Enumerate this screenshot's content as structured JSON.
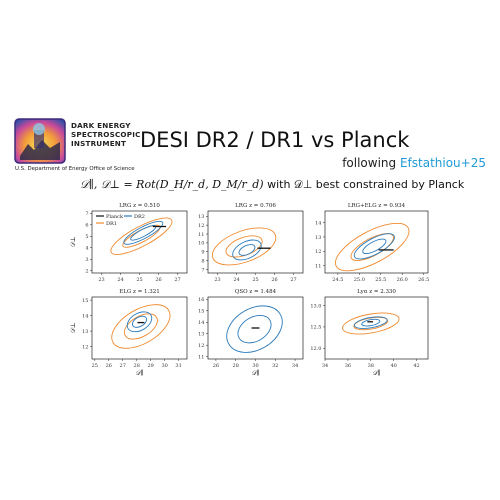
{
  "header": {
    "org_lines": [
      "DARK ENERGY",
      "SPECTROSCOPIC",
      "INSTRUMENT"
    ],
    "org_sub": "U.S. Department of Energy Office of Science",
    "title": "DESI DR2 / DR1 vs Planck",
    "following_prefix": "following ",
    "following_cite": "Efstathiou+25",
    "subtitle_math": "𝒟∥, 𝒟⊥ = Rot(D_H/r_d, D_M/r_d)",
    "subtitle_text": " with 𝒟⊥ best constrained by Planck"
  },
  "colors": {
    "planck": "#111111",
    "dr2": "#2b7bbb",
    "dr1": "#f08a2e"
  },
  "legend": {
    "entries": [
      "Planck",
      "DR2",
      "DR1"
    ],
    "placement": "upper-left (first panel)"
  },
  "chart_data": [
    {
      "type": "scatter",
      "title": "LRG z = 0.510",
      "xlabel": "",
      "ylabel": "𝒟⊥",
      "xlim": [
        22.5,
        27.5
      ],
      "ylim": [
        1.8,
        7.2
      ],
      "xticks": [
        "23",
        "24",
        "25",
        "26",
        "27"
      ],
      "yticks": [
        "2",
        "3",
        "4",
        "5",
        "6",
        "7"
      ],
      "planck": {
        "x": [
          25.7,
          26.4
        ],
        "y": [
          5.85,
          5.85
        ]
      },
      "dr2": [
        {
          "cx": 25.2,
          "cy": 5.3,
          "rx": 0.75,
          "ry": 0.3,
          "rot": -28
        },
        {
          "cx": 25.2,
          "cy": 5.3,
          "rx": 1.15,
          "ry": 0.5,
          "rot": -28
        }
      ],
      "dr1": [
        {
          "cx": 25.1,
          "cy": 5.0,
          "rx": 1.1,
          "ry": 0.5,
          "rot": -28
        },
        {
          "cx": 25.1,
          "cy": 5.0,
          "rx": 1.8,
          "ry": 0.85,
          "rot": -28
        }
      ],
      "legend": true
    },
    {
      "type": "scatter",
      "title": "LRG z = 0.706",
      "xlabel": "",
      "ylabel": "",
      "xlim": [
        22.5,
        27.5
      ],
      "ylim": [
        6.6,
        13.6
      ],
      "xticks": [
        "23",
        "24",
        "25",
        "26",
        "27"
      ],
      "yticks": [
        "7",
        "8",
        "9",
        "10",
        "11",
        "12",
        "13"
      ],
      "planck": {
        "x": [
          25.1,
          25.8
        ],
        "y": [
          9.4,
          9.4
        ]
      },
      "dr2": [
        {
          "cx": 24.55,
          "cy": 9.2,
          "rx": 0.45,
          "ry": 0.5,
          "rot": -25
        },
        {
          "cx": 24.55,
          "cy": 9.2,
          "rx": 0.8,
          "ry": 0.95,
          "rot": -25
        }
      ],
      "dr1": [
        {
          "cx": 24.4,
          "cy": 9.6,
          "rx": 1.0,
          "ry": 1.0,
          "rot": -20
        },
        {
          "cx": 24.4,
          "cy": 9.6,
          "rx": 1.75,
          "ry": 1.75,
          "rot": -20
        }
      ],
      "legend": false
    },
    {
      "type": "scatter",
      "title": "LRG+ELG z = 0.934",
      "xlabel": "",
      "ylabel": "",
      "xlim": [
        24.2,
        26.6
      ],
      "ylim": [
        10.5,
        14.8
      ],
      "xticks": [
        "24.5",
        "25.0",
        "25.5",
        "26.0",
        "26.5"
      ],
      "yticks": [
        "11",
        "12",
        "13",
        "14"
      ],
      "planck": {
        "x": [
          25.45,
          25.8
        ],
        "y": [
          12.1,
          12.1
        ]
      },
      "dr2": [
        {
          "cx": 25.35,
          "cy": 12.35,
          "rx": 0.3,
          "ry": 0.32,
          "rot": -28
        },
        {
          "cx": 25.35,
          "cy": 12.35,
          "rx": 0.52,
          "ry": 0.55,
          "rot": -28
        }
      ],
      "dr1": [
        {
          "cx": 25.3,
          "cy": 12.3,
          "rx": 0.55,
          "ry": 0.6,
          "rot": -28
        },
        {
          "cx": 25.3,
          "cy": 12.3,
          "rx": 0.95,
          "ry": 1.1,
          "rot": -28
        }
      ],
      "legend": false
    },
    {
      "type": "scatter",
      "title": "ELG z = 1.321",
      "xlabel": "𝒟∥",
      "ylabel": "𝒟⊥",
      "xlim": [
        24.8,
        31.6
      ],
      "ylim": [
        11.2,
        15.2
      ],
      "xticks": [
        "25",
        "26",
        "27",
        "28",
        "29",
        "30",
        "31"
      ],
      "yticks": [
        "12",
        "13",
        "14",
        "15"
      ],
      "planck": {
        "x": [
          28.05,
          28.55
        ],
        "y": [
          13.55,
          13.55
        ]
      },
      "dr2": [
        {
          "cx": 28.2,
          "cy": 13.6,
          "rx": 0.55,
          "ry": 0.3,
          "rot": -30
        },
        {
          "cx": 28.2,
          "cy": 13.6,
          "rx": 0.95,
          "ry": 0.55,
          "rot": -30
        }
      ],
      "dr1": [
        {
          "cx": 28.3,
          "cy": 13.3,
          "rx": 1.3,
          "ry": 0.65,
          "rot": -30
        },
        {
          "cx": 28.3,
          "cy": 13.3,
          "rx": 2.3,
          "ry": 1.1,
          "rot": -30
        }
      ],
      "legend": false
    },
    {
      "type": "scatter",
      "title": "QSO z = 1.484",
      "xlabel": "𝒟∥",
      "ylabel": "",
      "xlim": [
        25.2,
        34.8
      ],
      "ylim": [
        10.8,
        16.2
      ],
      "xticks": [
        "26",
        "28",
        "30",
        "32",
        "34"
      ],
      "yticks": [
        "11",
        "12",
        "13",
        "14",
        "15",
        "16"
      ],
      "planck": {
        "x": [
          29.6,
          30.4
        ],
        "y": [
          13.5,
          13.5
        ]
      },
      "dr2": [
        {
          "cx": 29.9,
          "cy": 13.4,
          "rx": 1.8,
          "ry": 1.05,
          "rot": -30
        },
        {
          "cx": 29.9,
          "cy": 13.4,
          "rx": 3.0,
          "ry": 1.8,
          "rot": -30
        }
      ],
      "dr1": [],
      "legend": false
    },
    {
      "type": "scatter",
      "title": "Lyα z = 2.330",
      "xlabel": "𝒟∥",
      "ylabel": "",
      "xlim": [
        34,
        43
      ],
      "ylim": [
        11.75,
        13.2
      ],
      "xticks": [
        "34",
        "36",
        "38",
        "40",
        "42"
      ],
      "yticks": [
        "12.0",
        "12.5",
        "13.0"
      ],
      "planck": {
        "x": [
          37.7,
          38.2
        ],
        "y": [
          12.62,
          12.62
        ]
      },
      "dr2": [
        {
          "cx": 38.0,
          "cy": 12.6,
          "rx": 0.8,
          "ry": 0.07,
          "rot": -10
        },
        {
          "cx": 38.0,
          "cy": 12.6,
          "rx": 1.45,
          "ry": 0.12,
          "rot": -10
        }
      ],
      "dr1": [
        {
          "cx": 38.0,
          "cy": 12.58,
          "rx": 1.5,
          "ry": 0.13,
          "rot": -10
        },
        {
          "cx": 38.0,
          "cy": 12.58,
          "rx": 2.5,
          "ry": 0.22,
          "rot": -10
        }
      ],
      "legend": false
    }
  ]
}
